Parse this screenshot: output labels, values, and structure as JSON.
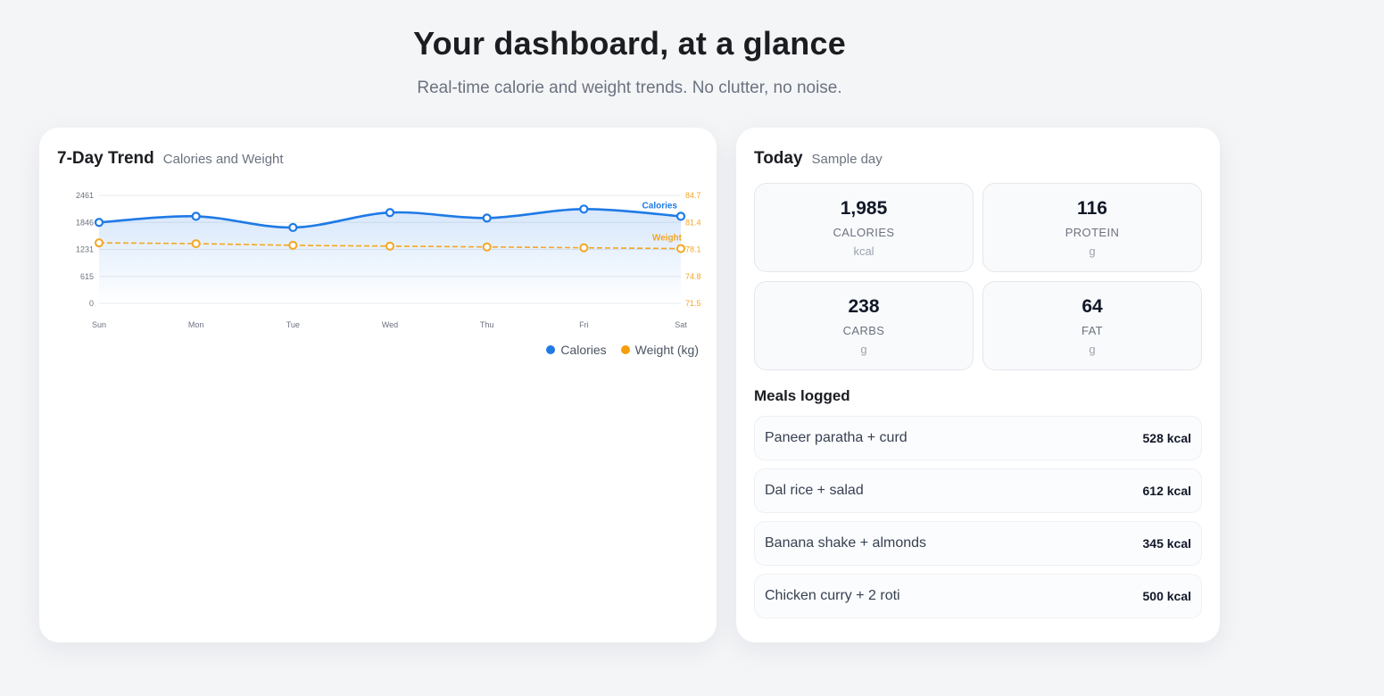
{
  "hero": {
    "title": "Your dashboard, at a glance",
    "subtitle": "Real-time calorie and weight trends. No clutter, no noise."
  },
  "trend": {
    "title": "7-Day Trend",
    "subtitle": "Calories and Weight"
  },
  "chart_data": {
    "type": "line",
    "categories": [
      "Sun",
      "Mon",
      "Tue",
      "Wed",
      "Thu",
      "Fri",
      "Sat"
    ],
    "series": [
      {
        "name": "Calories",
        "axis": "left",
        "color": "#1f7ae6",
        "values": [
          1845,
          1985,
          1730,
          2070,
          1945,
          2150,
          1985
        ]
      },
      {
        "name": "Weight",
        "axis": "right",
        "color": "#f5a623",
        "values": [
          78.9,
          78.8,
          78.6,
          78.5,
          78.4,
          78.3,
          78.2
        ]
      }
    ],
    "y_left": {
      "ticks": [
        "0",
        "615",
        "1231",
        "1846",
        "2461"
      ],
      "range": [
        0,
        2461
      ]
    },
    "y_right": {
      "ticks": [
        "71.5",
        "74.8",
        "78.1",
        "81.4",
        "84.7"
      ],
      "range": [
        71.5,
        84.7
      ]
    },
    "legend": [
      {
        "label": "Calories",
        "color": "#1f7ae6"
      },
      {
        "label": "Weight (kg)",
        "color": "#f59e0b"
      }
    ],
    "legend_position": "bottom-right",
    "grid": true
  },
  "today": {
    "title": "Today",
    "subtitle": "Sample day",
    "macros": [
      {
        "value": "1,985",
        "label": "CALORIES",
        "unit": "kcal"
      },
      {
        "value": "116",
        "label": "PROTEIN",
        "unit": "g"
      },
      {
        "value": "238",
        "label": "CARBS",
        "unit": "g"
      },
      {
        "value": "64",
        "label": "FAT",
        "unit": "g"
      }
    ],
    "meals_title": "Meals logged",
    "meals": [
      {
        "name": "Paneer paratha + curd",
        "kcal": "528 kcal"
      },
      {
        "name": "Dal rice + salad",
        "kcal": "612 kcal"
      },
      {
        "name": "Banana shake + almonds",
        "kcal": "345 kcal"
      },
      {
        "name": "Chicken curry + 2 roti",
        "kcal": "500 kcal"
      }
    ]
  }
}
